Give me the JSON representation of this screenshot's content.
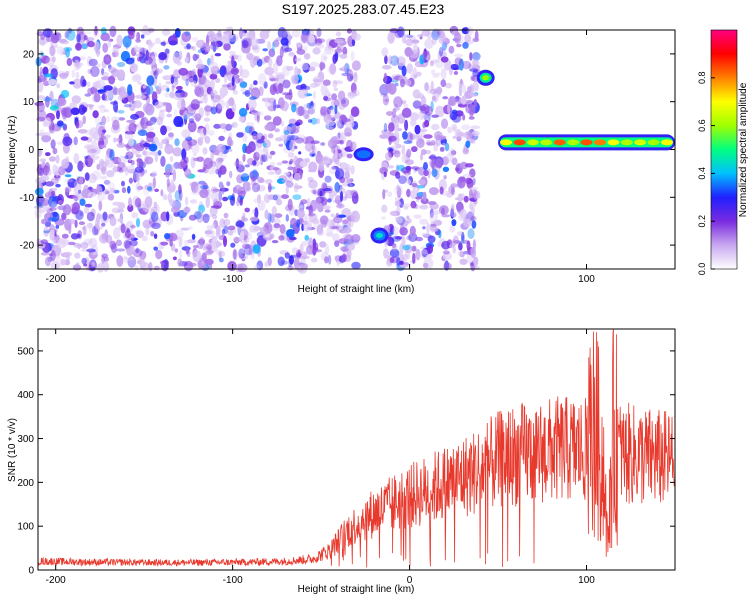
{
  "title": "S197.2025.283.07.45.E23",
  "chart_data": [
    {
      "type": "heatmap",
      "xlabel": "Height of straight line (km)",
      "ylabel": "Frequency (Hz)",
      "xlim": [
        -210,
        150
      ],
      "ylim": [
        -25,
        25
      ],
      "x_ticks": [
        -200,
        -100,
        0,
        100
      ],
      "y_ticks": [
        -20,
        -10,
        0,
        10,
        20
      ],
      "colorbar": {
        "label": "Normalized spectral amplitude",
        "range": [
          0.0,
          1.0
        ],
        "ticks": [
          0.0,
          0.2,
          0.4,
          0.6,
          0.8
        ],
        "tick_labels": [
          "0.0",
          "0.2",
          "0.4",
          "0.6",
          "0.8"
        ],
        "colors": [
          "#ffffff",
          "#c8a8f0",
          "#7a2be0",
          "#2020ff",
          "#00c0ff",
          "#00ff80",
          "#a0ff00",
          "#ffff00",
          "#ff8000",
          "#ff0000",
          "#ff0080"
        ]
      },
      "features": [
        {
          "name": "noise",
          "x_range": [
            -210,
            -30
          ],
          "y_range": [
            -25,
            25
          ],
          "amplitude": 0.15
        },
        {
          "name": "noise",
          "x_range": [
            -15,
            38
          ],
          "y_range": [
            -25,
            25
          ],
          "amplitude": 0.15
        },
        {
          "name": "line",
          "x_range": [
            -30,
            -22
          ],
          "frequency": -1,
          "amplitude": 0.35
        },
        {
          "name": "blob",
          "x": -17,
          "frequency": -18,
          "amplitude": 0.45
        },
        {
          "name": "blob",
          "x": 43,
          "frequency": 15,
          "amplitude": 0.6
        },
        {
          "name": "carrier",
          "x_range": [
            50,
            150
          ],
          "frequency": 1.5,
          "amplitude": 0.85
        }
      ]
    },
    {
      "type": "line",
      "xlabel": "Height of straight line (km)",
      "ylabel": "SNR (10 * v/v)",
      "xlim": [
        -210,
        150
      ],
      "ylim": [
        0,
        550
      ],
      "x_ticks": [
        -200,
        -100,
        0,
        100
      ],
      "y_ticks": [
        0,
        100,
        200,
        300,
        400,
        500
      ],
      "color": "#e8392d",
      "series": [
        {
          "name": "SNR",
          "x": [
            -210,
            -180,
            -150,
            -120,
            -90,
            -70,
            -55,
            -45,
            -35,
            -25,
            -15,
            -5,
            5,
            15,
            25,
            35,
            45,
            55,
            65,
            75,
            85,
            95,
            100,
            105,
            110,
            112,
            115,
            120,
            130,
            140,
            150
          ],
          "y": [
            20,
            18,
            17,
            17,
            18,
            20,
            25,
            45,
            90,
            120,
            140,
            160,
            175,
            190,
            205,
            220,
            240,
            260,
            265,
            270,
            275,
            275,
            270,
            290,
            200,
            40,
            280,
            265,
            260,
            255,
            250
          ]
        }
      ]
    }
  ]
}
